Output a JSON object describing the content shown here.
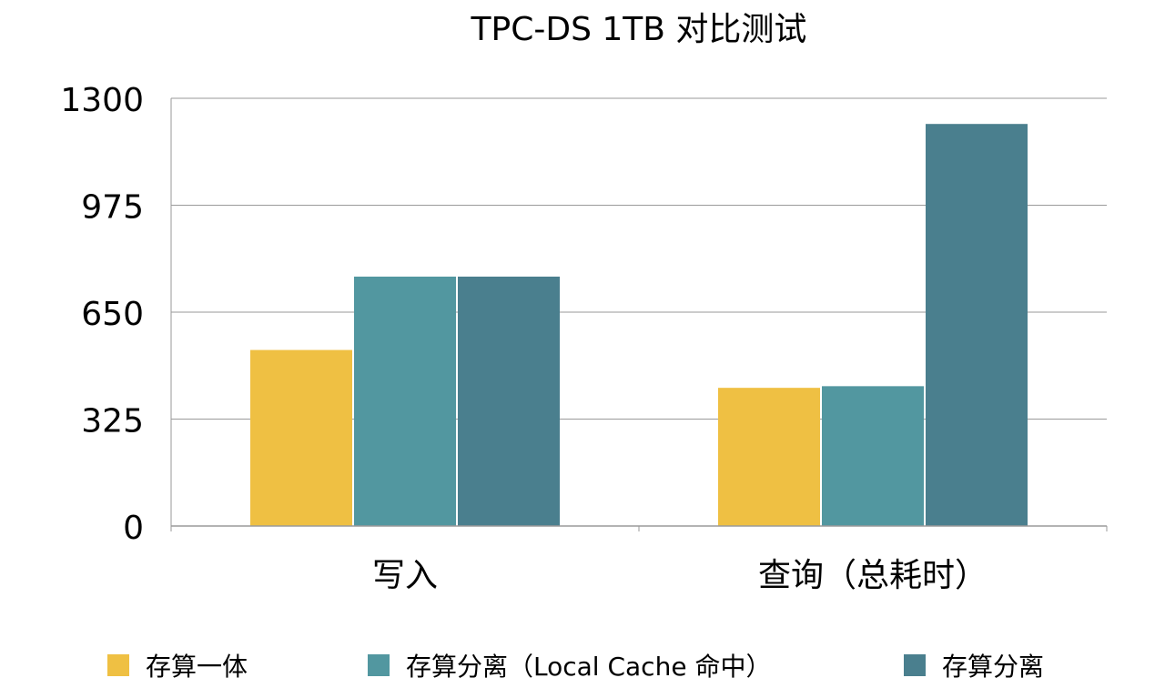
{
  "chart_data": {
    "type": "bar",
    "title": "TPC-DS 1TB 对比测试",
    "categories": [
      "写入",
      "查询（总耗时）"
    ],
    "series": [
      {
        "name": "存算一体",
        "color": "#EFC043",
        "values": [
          535,
          420
        ]
      },
      {
        "name": "存算分离（Local Cache 命中）",
        "color": "#5297A0",
        "values": [
          758,
          425
        ]
      },
      {
        "name": "存算分离",
        "color": "#4A7F8E",
        "values": [
          758,
          1222
        ]
      }
    ],
    "ylim": [
      0,
      1300
    ],
    "yticks": [
      "0",
      "325",
      "650",
      "975",
      "1300"
    ],
    "xlabel": "",
    "ylabel": "",
    "grid": true,
    "legend_position": "bottom"
  }
}
